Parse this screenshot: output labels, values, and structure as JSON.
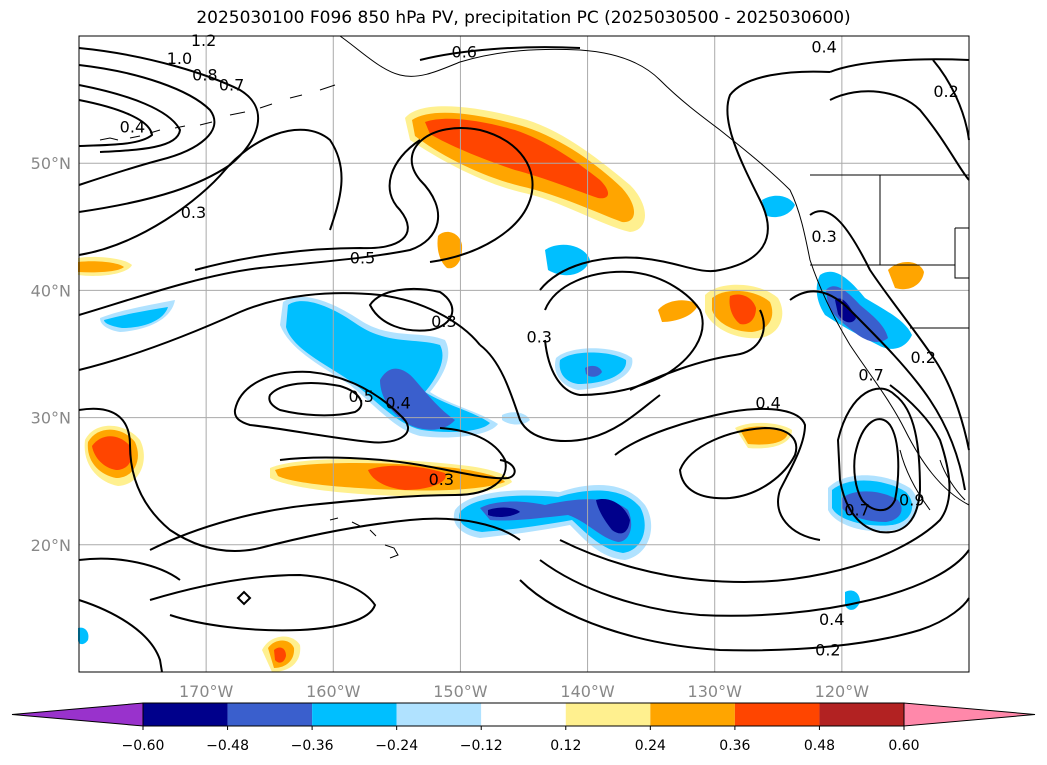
{
  "title": "2025030100 F096 850 hPa PV, precipitation PC (2025030500 - 2025030600)",
  "map": {
    "extent": {
      "lon_min": -180,
      "lon_max": -110,
      "lat_min": 10,
      "lat_max": 60
    },
    "lat_ticks": [
      {
        "value": 20,
        "label": "20°N"
      },
      {
        "value": 30,
        "label": "30°N"
      },
      {
        "value": 40,
        "label": "40°N"
      },
      {
        "value": 50,
        "label": "50°N"
      }
    ],
    "lon_ticks": [
      {
        "value": -170,
        "label": "170°W"
      },
      {
        "value": -160,
        "label": "160°W"
      },
      {
        "value": -150,
        "label": "150°W"
      },
      {
        "value": -140,
        "label": "140°W"
      },
      {
        "value": -130,
        "label": "130°W"
      },
      {
        "value": -120,
        "label": "120°W"
      }
    ],
    "grid": true,
    "contour_labels": [
      {
        "text": "1.2",
        "lon": -170.2,
        "lat": 59.6
      },
      {
        "text": "1.0",
        "lon": -172.1,
        "lat": 58.2
      },
      {
        "text": "0.8",
        "lon": -170.1,
        "lat": 56.9
      },
      {
        "text": "0.7",
        "lon": -168.0,
        "lat": 56.1
      },
      {
        "text": "0.4",
        "lon": -175.8,
        "lat": 52.8
      },
      {
        "text": "0.3",
        "lon": -171.0,
        "lat": 46.1
      },
      {
        "text": "0.5",
        "lon": -157.7,
        "lat": 42.5
      },
      {
        "text": "0.6",
        "lon": -149.7,
        "lat": 58.7
      },
      {
        "text": "0.4",
        "lon": -121.4,
        "lat": 59.1
      },
      {
        "text": "0.2",
        "lon": -111.8,
        "lat": 55.6
      },
      {
        "text": "0.3",
        "lon": -121.4,
        "lat": 44.2
      },
      {
        "text": "0.3",
        "lon": -151.3,
        "lat": 37.5
      },
      {
        "text": "0.3",
        "lon": -143.8,
        "lat": 36.3
      },
      {
        "text": "0.5",
        "lon": -157.8,
        "lat": 31.6
      },
      {
        "text": "0.4",
        "lon": -154.9,
        "lat": 31.1
      },
      {
        "text": "0.3",
        "lon": -151.5,
        "lat": 25.1
      },
      {
        "text": "0.4",
        "lon": -125.8,
        "lat": 31.1
      },
      {
        "text": "0.2",
        "lon": -113.6,
        "lat": 34.7
      },
      {
        "text": "0.7",
        "lon": -117.7,
        "lat": 33.3
      },
      {
        "text": "0.9",
        "lon": -114.5,
        "lat": 23.5
      },
      {
        "text": "0.7",
        "lon": -118.8,
        "lat": 22.7
      },
      {
        "text": "0.4",
        "lon": -120.8,
        "lat": 14.1
      },
      {
        "text": "0.2",
        "lon": -121.1,
        "lat": 11.7
      }
    ]
  },
  "colorbar": {
    "colors": [
      "#9932cc",
      "#00008b",
      "#3a5fcd",
      "#00bfff",
      "#b0e2ff",
      "#ffffff",
      "#fff08f",
      "#ffa500",
      "#ff4500",
      "#b22222",
      "#ff88aa"
    ],
    "ticks": [
      "−0.60",
      "−0.48",
      "−0.36",
      "−0.24",
      "−0.12",
      "0.12",
      "0.24",
      "0.36",
      "0.48",
      "0.60"
    ]
  }
}
